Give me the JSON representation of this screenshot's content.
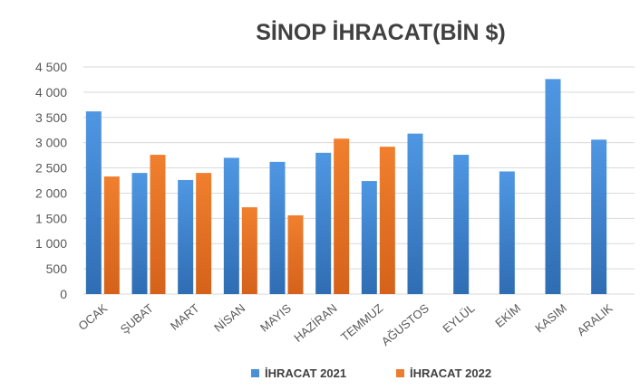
{
  "chart_data": {
    "type": "bar",
    "title": "SİNOP İHRACAT(BİN $)",
    "categories": [
      "OCAK",
      "ŞUBAT",
      "MART",
      "NİSAN",
      "MAYIS",
      "HAZİRAN",
      "TEMMUZ",
      "AĞUSTOS",
      "EYLÜL",
      "EKİM",
      "KASIM",
      "ARALIK"
    ],
    "series": [
      {
        "name": "İHRACAT 2021",
        "color": "#4a8fd8",
        "values": [
          3620,
          2400,
          2260,
          2700,
          2620,
          2800,
          2240,
          3180,
          2760,
          2430,
          4260,
          3060
        ]
      },
      {
        "name": "İHRACAT 2022",
        "color": "#ec7c30",
        "values": [
          2330,
          2760,
          2400,
          1720,
          1560,
          3080,
          2920,
          null,
          null,
          null,
          null,
          null
        ]
      }
    ],
    "yticks": [
      "0",
      "500",
      "1 000",
      "1 500",
      "2 000",
      "2 500",
      "3 000",
      "3 500",
      "4 000",
      "4 500"
    ],
    "ylim": [
      0,
      4500
    ],
    "xlabel": "",
    "ylabel": "",
    "legend_position": "bottom"
  }
}
